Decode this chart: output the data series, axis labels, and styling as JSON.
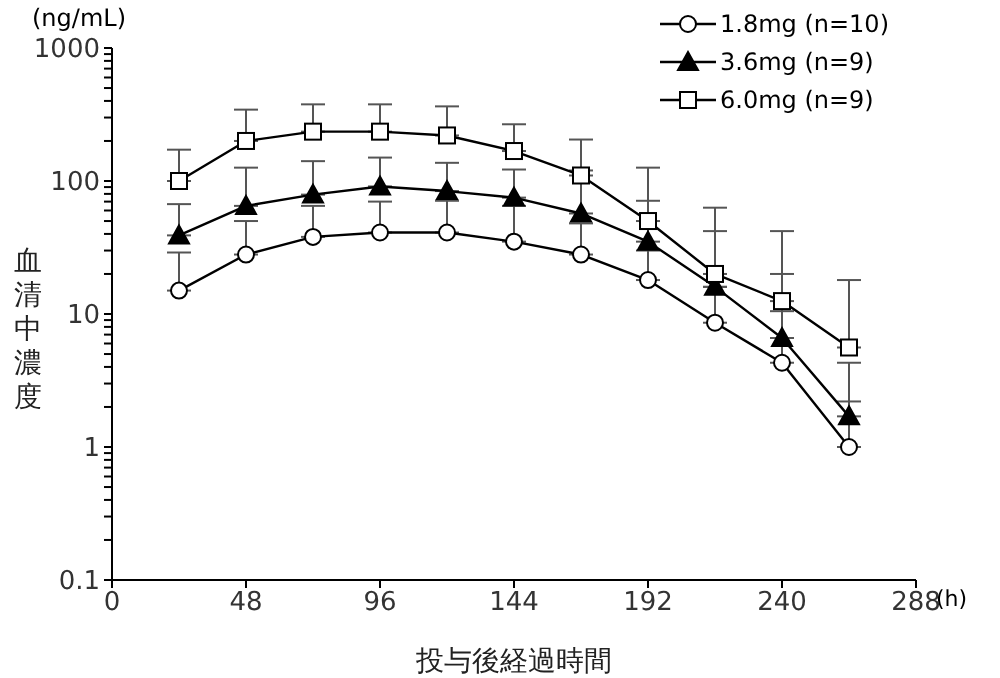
{
  "chart_data": {
    "type": "line",
    "xlabel": "投与後経過時間",
    "ylabel": "血清中濃度",
    "annotations": [
      "(ng/mL)",
      "(h)"
    ],
    "x": [
      24,
      48,
      72,
      96,
      120,
      144,
      168,
      192,
      216,
      240,
      264
    ],
    "series": [
      {
        "name": "1.8mg (n=10)",
        "color": "#000000",
        "marker": "circle",
        "values": [
          15,
          28,
          38,
          41,
          41,
          35,
          28,
          18,
          8.6,
          4.3,
          1.0
        ],
        "errors": [
          [
            15,
            29
          ],
          [
            28,
            50
          ],
          [
            38,
            65
          ],
          [
            41,
            70
          ],
          [
            41,
            71
          ],
          [
            35,
            65
          ],
          [
            28,
            48
          ],
          [
            18,
            30
          ],
          [
            8.6,
            16
          ],
          [
            4.3,
            10.5
          ],
          [
            1.0,
            2.2
          ]
        ]
      },
      {
        "name": "3.6mg (n=9)",
        "color": "#000000",
        "marker": "triangle",
        "values": [
          39,
          65,
          79,
          91,
          84,
          75,
          57,
          35,
          16,
          6.6,
          1.7
        ],
        "errors": [
          [
            39,
            67
          ],
          [
            65,
            126
          ],
          [
            79,
            141
          ],
          [
            91,
            150
          ],
          [
            84,
            137
          ],
          [
            75,
            122
          ],
          [
            57,
            120
          ],
          [
            35,
            71
          ],
          [
            16,
            42
          ],
          [
            6.6,
            20
          ],
          [
            1.7,
            4.3
          ]
        ]
      },
      {
        "name": "6.0mg (n=9)",
        "color": "#000000",
        "marker": "square",
        "values": [
          100,
          200,
          235,
          235,
          220,
          168,
          110,
          50,
          20,
          12.5,
          5.6
        ],
        "errors": [
          [
            100,
            172
          ],
          [
            200,
            344
          ],
          [
            235,
            377
          ],
          [
            235,
            377
          ],
          [
            220,
            364
          ],
          [
            168,
            267
          ],
          [
            110,
            205
          ],
          [
            50,
            126
          ],
          [
            20,
            63
          ],
          [
            12.5,
            42
          ],
          [
            5.6,
            18
          ]
        ]
      }
    ],
    "xlim": [
      0,
      288
    ],
    "xticks": [
      0,
      48,
      96,
      144,
      192,
      240,
      288
    ],
    "ylim": [
      0.1,
      1000
    ],
    "log": true,
    "yticks": [
      0.1,
      {
        "value": 0.2,
        "label": null
      },
      {
        "value": 0.3,
        "label": null
      },
      {
        "value": 0.4,
        "label": null
      },
      {
        "value": 0.5,
        "label": null
      },
      {
        "value": 0.6,
        "label": null
      },
      {
        "value": 0.7,
        "label": null
      },
      {
        "value": 0.8,
        "label": null
      },
      {
        "value": 0.9,
        "label": null
      },
      1,
      {
        "value": 2,
        "label": null
      },
      {
        "value": 3,
        "label": null
      },
      {
        "value": 4,
        "label": null
      },
      {
        "value": 5,
        "label": null
      },
      {
        "value": 6,
        "label": null
      },
      {
        "value": 7,
        "label": null
      },
      {
        "value": 8,
        "label": null
      },
      {
        "value": 9,
        "label": null
      },
      10,
      {
        "value": 20,
        "label": null
      },
      {
        "value": 30,
        "label": null
      },
      {
        "value": 40,
        "label": null
      },
      {
        "value": 50,
        "label": null
      },
      {
        "value": 60,
        "label": null
      },
      {
        "value": 70,
        "label": null
      },
      {
        "value": 80,
        "label": null
      },
      {
        "value": 90,
        "label": null
      },
      100,
      {
        "value": 200,
        "label": null
      },
      {
        "value": 300,
        "label": null
      },
      {
        "value": 400,
        "label": null
      },
      {
        "value": 500,
        "label": null
      },
      {
        "value": 600,
        "label": null
      },
      {
        "value": 700,
        "label": null
      },
      {
        "value": 800,
        "label": null
      },
      {
        "value": 900,
        "label": null
      },
      1000
    ],
    "grid": false,
    "legend": "top right",
    "line_style": "solid"
  }
}
